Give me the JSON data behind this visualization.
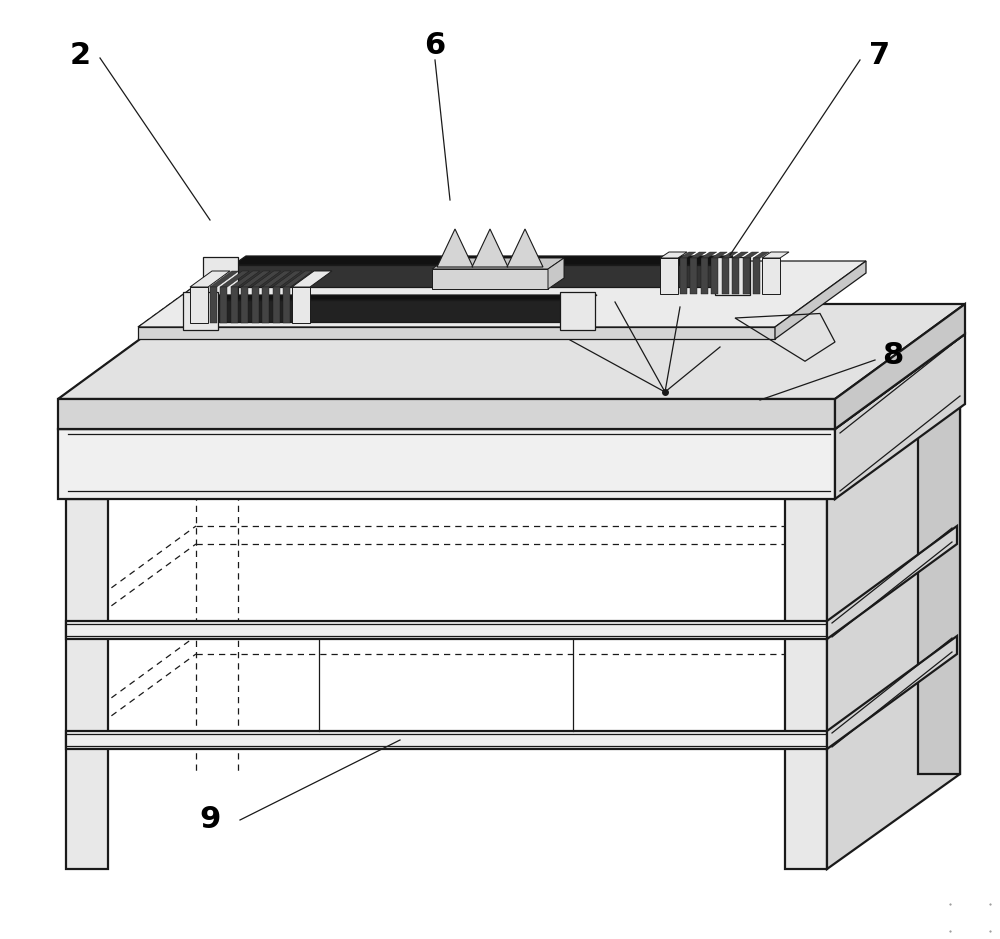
{
  "background_color": "#ffffff",
  "line_color": "#1a1a1a",
  "lw_main": 1.6,
  "lw_thin": 0.9,
  "lw_detail": 0.7,
  "label_fontsize": 22,
  "label_fontweight": "bold",
  "colors": {
    "top_surface": "#e2e2e2",
    "top_surface_inner": "#ebebeb",
    "front_face": "#f0f0f0",
    "right_face": "#d5d5d5",
    "dark": "#111111",
    "mid": "#c8c8c8",
    "light": "#e8e8e8",
    "shelf_right": "#d0d0d0",
    "rib_dark": "#444444"
  }
}
